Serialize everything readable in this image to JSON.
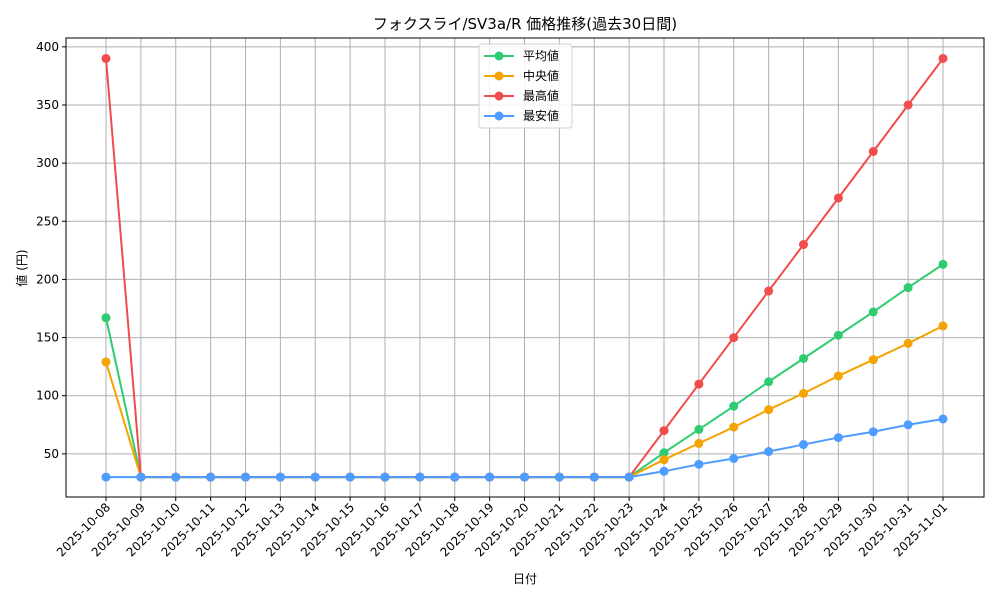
{
  "chart_data": {
    "type": "line",
    "title": "フォクスライ/SV3a/R 価格推移(過去30日間)",
    "xlabel": "日付",
    "ylabel": "値 (円)",
    "ylim": [
      13,
      410
    ],
    "yticks": [
      50,
      100,
      150,
      200,
      250,
      300,
      350,
      400
    ],
    "grid": true,
    "legend_position": "upper center",
    "x": [
      "2025-10-08",
      "2025-10-09",
      "2025-10-10",
      "2025-10-11",
      "2025-10-12",
      "2025-10-13",
      "2025-10-14",
      "2025-10-15",
      "2025-10-16",
      "2025-10-17",
      "2025-10-18",
      "2025-10-19",
      "2025-10-20",
      "2025-10-21",
      "2025-10-22",
      "2025-10-23",
      "2025-10-24",
      "2025-10-25",
      "2025-10-26",
      "2025-10-27",
      "2025-10-28",
      "2025-10-29",
      "2025-10-30",
      "2025-10-31",
      "2025-11-01"
    ],
    "series": [
      {
        "name": "平均値",
        "color": "#2ecc71",
        "values": [
          167,
          30,
          30,
          30,
          30,
          30,
          30,
          30,
          30,
          30,
          30,
          30,
          30,
          30,
          30,
          30,
          51,
          71,
          91,
          112,
          132,
          152,
          172,
          193,
          213
        ]
      },
      {
        "name": "中央値",
        "color": "#f5a300",
        "values": [
          129,
          30,
          30,
          30,
          30,
          30,
          30,
          30,
          30,
          30,
          30,
          30,
          30,
          30,
          30,
          30,
          45,
          59,
          73,
          88,
          102,
          117,
          131,
          145,
          160
        ]
      },
      {
        "name": "最高値",
        "color": "#f24c4c",
        "values": [
          390,
          30,
          30,
          30,
          30,
          30,
          30,
          30,
          30,
          30,
          30,
          30,
          30,
          30,
          30,
          30,
          70,
          110,
          150,
          190,
          230,
          270,
          310,
          350,
          390
        ]
      },
      {
        "name": "最安値",
        "color": "#4d9cff",
        "values": [
          30,
          30,
          30,
          30,
          30,
          30,
          30,
          30,
          30,
          30,
          30,
          30,
          30,
          30,
          30,
          30,
          35,
          41,
          46,
          52,
          58,
          64,
          69,
          75,
          80
        ]
      }
    ]
  }
}
